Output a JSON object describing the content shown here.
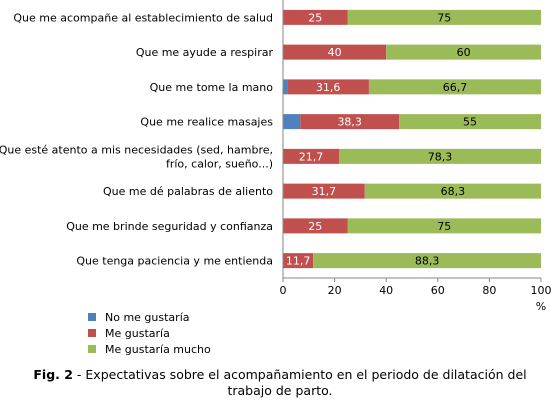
{
  "chart_data": {
    "type": "bar",
    "orientation": "horizontal",
    "stacked": true,
    "categories": [
      "Que me acompañe al establecimiento de salud",
      "Que me ayude a respirar",
      "Que me tome la mano",
      "Que me realice masajes",
      "Que esté atento a mis necesidades (sed, hambre, frío, calor, sueño...)",
      "Que me dé palabras de aliento",
      "Que me brinde seguridad y confianza",
      "Que tenga paciencia y me entienda"
    ],
    "category_lines": [
      [
        "Que me acompañe al establecimiento de salud"
      ],
      [
        "Que me ayude a respirar"
      ],
      [
        "Que me tome la mano"
      ],
      [
        "Que me realice masajes"
      ],
      [
        "Que esté atento a mis necesidades (sed, hambre,",
        "frío, calor, sueño...)"
      ],
      [
        "Que me dé palabras de aliento"
      ],
      [
        "Que me brinde seguridad y confianza"
      ],
      [
        "Que tenga paciencia y me entienda"
      ]
    ],
    "series": [
      {
        "name": "No me gustaría",
        "color": "#4f81bd",
        "values": [
          0,
          0,
          1.7,
          6.7,
          0,
          0,
          0,
          0
        ],
        "labels": [
          "",
          "",
          "",
          "",
          "",
          "",
          "",
          ""
        ]
      },
      {
        "name": "Me gustaría",
        "color": "#c0504d",
        "values": [
          25,
          40,
          31.6,
          38.3,
          21.7,
          31.7,
          25,
          11.7
        ],
        "labels": [
          "25",
          "40",
          "31,6",
          "38,3",
          "21,7",
          "31,7",
          "25",
          "11,7"
        ]
      },
      {
        "name": "Me gustaría mucho",
        "color": "#9bbb59",
        "values": [
          75,
          60,
          66.7,
          55,
          78.3,
          68.3,
          75,
          88.3
        ],
        "labels": [
          "75",
          "60",
          "66,7",
          "55",
          "78,3",
          "68,3",
          "75",
          "88,3"
        ]
      }
    ],
    "xlim": [
      0,
      100
    ],
    "xticks": [
      "0",
      "20",
      "40",
      "60",
      "80",
      "100"
    ],
    "xlabel": "%",
    "legend_position": "bottom-left",
    "grid": false
  },
  "caption": {
    "label": "Fig. 2",
    "text": " - Expectativas sobre el acompañamiento en el periodo de dilatación del trabajo de parto."
  }
}
